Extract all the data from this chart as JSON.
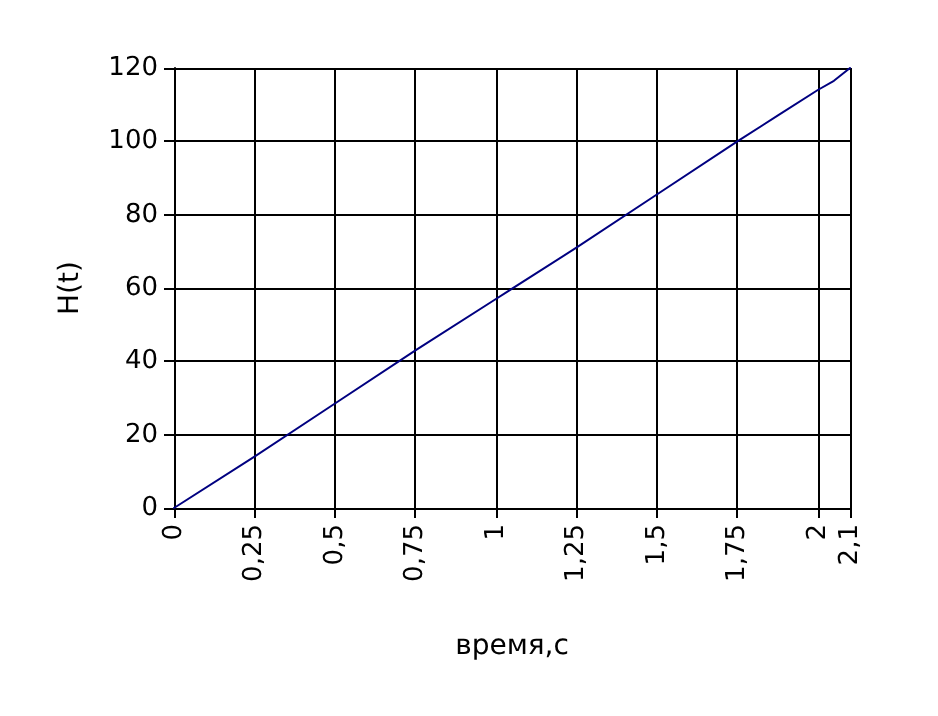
{
  "chart_data": {
    "type": "line",
    "xlabel": "время,с",
    "ylabel": "H(t)",
    "x": [
      0,
      0.25,
      0.5,
      0.75,
      1,
      1.25,
      1.5,
      1.75,
      1.875,
      2,
      2.05,
      2.1
    ],
    "series": [
      {
        "color": "#000080",
        "values": [
          0,
          14,
          28.5,
          43,
          57,
          71,
          85.5,
          100,
          107,
          114,
          116.5,
          120
        ]
      }
    ],
    "xlim": [
      0,
      2.1
    ],
    "xticks": [
      0,
      {
        "value": 0.25,
        "label": "0,25"
      },
      {
        "value": 0.5,
        "label": "0,5"
      },
      {
        "value": 0.75,
        "label": "0,75"
      },
      1,
      {
        "value": 1.25,
        "label": "1,25"
      },
      {
        "value": 1.5,
        "label": "1,5"
      },
      {
        "value": 1.75,
        "label": "1,75"
      },
      2,
      {
        "value": 2.1,
        "label": "2,1"
      }
    ],
    "ylim": [
      0,
      120
    ],
    "yticks": [
      0,
      20,
      40,
      60,
      80,
      100,
      120
    ],
    "grid": true,
    "marker": "none",
    "line_style": "solid"
  }
}
